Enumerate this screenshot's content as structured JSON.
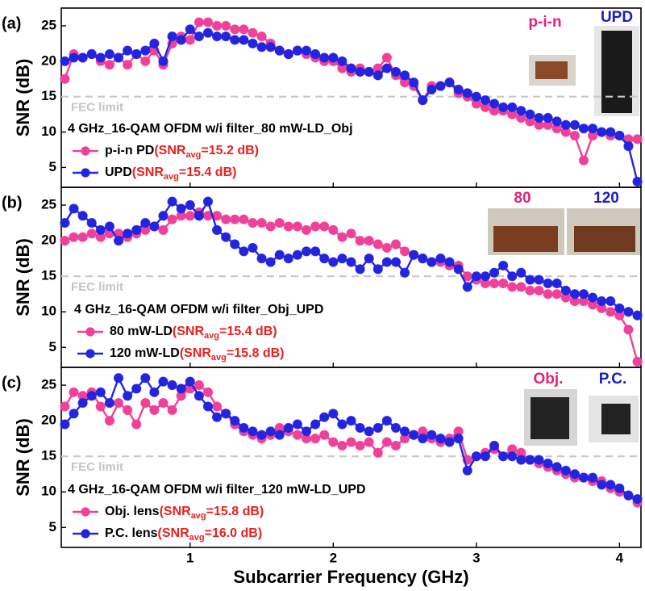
{
  "chart_data": [
    {
      "type": "line",
      "panel_label": "(a)",
      "ylabel": "SNR (dB)",
      "xlim": [
        0.1,
        4.15
      ],
      "ylim": [
        2.2,
        27.5
      ],
      "yticks": [
        5,
        10,
        15,
        20,
        25
      ],
      "fec": {
        "value": 15,
        "label": "FEC limit"
      },
      "legend_title": "4 GHz_16-QAM OFDM w/i filter_80 mW-LD_Obj",
      "photo_labels": [
        {
          "text": "p-i-n",
          "color": "#e8207a"
        },
        {
          "text": "UPD",
          "color": "#1c1cc8"
        }
      ],
      "x": [
        0.125,
        0.1875,
        0.25,
        0.3125,
        0.375,
        0.4375,
        0.5,
        0.5625,
        0.625,
        0.6875,
        0.75,
        0.8125,
        0.875,
        0.9375,
        1.0,
        1.0625,
        1.125,
        1.1875,
        1.25,
        1.3125,
        1.375,
        1.4375,
        1.5,
        1.5625,
        1.625,
        1.6875,
        1.75,
        1.8125,
        1.875,
        1.9375,
        2.0,
        2.0625,
        2.125,
        2.1875,
        2.25,
        2.3125,
        2.375,
        2.4375,
        2.5,
        2.5625,
        2.625,
        2.6875,
        2.75,
        2.8125,
        2.875,
        2.9375,
        3.0,
        3.0625,
        3.125,
        3.1875,
        3.25,
        3.3125,
        3.375,
        3.4375,
        3.5,
        3.5625,
        3.625,
        3.6875,
        3.75,
        3.8125,
        3.875,
        3.9375,
        4.0,
        4.0625,
        4.125
      ],
      "series": [
        {
          "name": "p-i-n PD",
          "color": "#f0409a",
          "snr": {
            "prefix": "(SNR",
            "sub": "avg",
            "suffix": "=15.2 dB)"
          },
          "values": [
            17.5,
            21,
            20.5,
            21,
            20,
            19.5,
            20.5,
            19.5,
            21,
            20,
            21.5,
            19.5,
            22.5,
            23.5,
            23,
            25.5,
            25.5,
            25,
            25,
            24.5,
            24.5,
            24,
            23.5,
            22.5,
            21.5,
            21,
            21.5,
            21,
            20.5,
            20,
            20,
            19,
            18.5,
            19,
            18.5,
            19,
            20.5,
            18,
            17,
            16.5,
            14.5,
            16.5,
            16.5,
            17,
            15.5,
            15,
            14,
            13.5,
            13,
            13,
            12.5,
            12,
            11.5,
            11,
            11,
            10.5,
            10,
            9.5,
            6,
            9.5,
            10,
            9.5,
            9.5,
            9,
            9
          ]
        },
        {
          "name": "UPD",
          "color": "#2424e0",
          "snr": {
            "prefix": "(SNR",
            "sub": "avg",
            "suffix": "=15.4 dB)"
          },
          "values": [
            20,
            20.5,
            20.5,
            21,
            20.5,
            21,
            20.5,
            21.5,
            21,
            21.5,
            22.5,
            20,
            23.5,
            23,
            24.5,
            23.5,
            24,
            23.5,
            23.5,
            23,
            23,
            22.5,
            22,
            22,
            21.5,
            21,
            21.5,
            21.5,
            21,
            20.5,
            20.5,
            20,
            19,
            18.5,
            18.5,
            18,
            19,
            18.5,
            18,
            17,
            14.5,
            16,
            16.5,
            17,
            16,
            15.5,
            15,
            14.5,
            14,
            13.5,
            13.5,
            13,
            12.5,
            12,
            12,
            11.5,
            11,
            11,
            10.5,
            10.5,
            10,
            10,
            9.5,
            8,
            3
          ]
        }
      ]
    },
    {
      "type": "line",
      "panel_label": "(b)",
      "ylabel": "SNR (dB)",
      "xlim": [
        0.1,
        4.15
      ],
      "ylim": [
        2.2,
        27.5
      ],
      "yticks": [
        5,
        10,
        15,
        20,
        25
      ],
      "fec": {
        "value": 15,
        "label": "FEC limit"
      },
      "legend_title": "4 GHz_16-QAM OFDM w/i filter_Obj_UPD",
      "photo_labels": [
        {
          "text": "80",
          "color": "#e8207a"
        },
        {
          "text": "120",
          "color": "#1c1cc8"
        }
      ],
      "x": [
        0.125,
        0.1875,
        0.25,
        0.3125,
        0.375,
        0.4375,
        0.5,
        0.5625,
        0.625,
        0.6875,
        0.75,
        0.8125,
        0.875,
        0.9375,
        1.0,
        1.0625,
        1.125,
        1.1875,
        1.25,
        1.3125,
        1.375,
        1.4375,
        1.5,
        1.5625,
        1.625,
        1.6875,
        1.75,
        1.8125,
        1.875,
        1.9375,
        2.0,
        2.0625,
        2.125,
        2.1875,
        2.25,
        2.3125,
        2.375,
        2.4375,
        2.5,
        2.5625,
        2.625,
        2.6875,
        2.75,
        2.8125,
        2.875,
        2.9375,
        3.0,
        3.0625,
        3.125,
        3.1875,
        3.25,
        3.3125,
        3.375,
        3.4375,
        3.5,
        3.5625,
        3.625,
        3.6875,
        3.75,
        3.8125,
        3.875,
        3.9375,
        4.0,
        4.0625,
        4.125
      ],
      "series": [
        {
          "name": "80 mW-LD",
          "color": "#f0409a",
          "snr": {
            "prefix": "(SNR",
            "sub": "avg",
            "suffix": "=15.4 dB)"
          },
          "values": [
            20,
            20.5,
            20.5,
            21,
            20.5,
            21,
            21,
            20.5,
            21,
            21.5,
            22,
            21.5,
            23,
            23.5,
            23.5,
            24,
            23.5,
            23.5,
            23,
            23,
            23,
            22.5,
            22.5,
            22,
            22.5,
            22,
            22,
            21.5,
            22,
            22,
            21.5,
            20.5,
            21,
            20,
            20,
            19.5,
            19,
            19.5,
            18.5,
            18,
            17.5,
            17,
            17,
            16.5,
            16.5,
            15,
            14.5,
            14,
            14,
            14,
            13.5,
            13.5,
            13,
            13,
            12.5,
            12.5,
            12,
            11.5,
            11.5,
            11,
            10.5,
            10,
            9.5,
            7.5,
            3
          ]
        },
        {
          "name": "120 mW-LD",
          "color": "#2424e0",
          "snr": {
            "prefix": "(SNR",
            "sub": "avg",
            "suffix": "=15.8 dB)"
          },
          "values": [
            22.5,
            24.5,
            23.5,
            22.5,
            21.5,
            22,
            20,
            21,
            21.5,
            22.5,
            22,
            23.5,
            25.5,
            24.5,
            25,
            23.5,
            25.5,
            21.5,
            20.5,
            19.5,
            18.5,
            19,
            17.5,
            17,
            18,
            17.5,
            18,
            18.5,
            18.5,
            17.5,
            17,
            17.5,
            17,
            16,
            17.5,
            16,
            17,
            17,
            15.5,
            18,
            17.5,
            17,
            17.5,
            17,
            16,
            13.5,
            15,
            15,
            15.5,
            16.5,
            15,
            15.5,
            14.5,
            14.5,
            14,
            14,
            13,
            12.5,
            12.5,
            12,
            11.5,
            11.5,
            10.5,
            10,
            9.5
          ]
        }
      ]
    },
    {
      "type": "line",
      "panel_label": "(c)",
      "ylabel": "SNR (dB)",
      "xlabel": "Subcarrier Frequency (GHz)",
      "xlim": [
        0.1,
        4.15
      ],
      "ylim": [
        2.2,
        27.5
      ],
      "xticks": [
        1,
        2,
        3,
        4
      ],
      "yticks": [
        5,
        10,
        15,
        20,
        25
      ],
      "fec": {
        "value": 15,
        "label": "FEC limit"
      },
      "legend_title": "4 GHz_16-QAM OFDM w/i filter_120 mW-LD_UPD",
      "photo_labels": [
        {
          "text": "Obj.",
          "color": "#e8207a"
        },
        {
          "text": "P.C.",
          "color": "#1c1cc8"
        }
      ],
      "x": [
        0.125,
        0.1875,
        0.25,
        0.3125,
        0.375,
        0.4375,
        0.5,
        0.5625,
        0.625,
        0.6875,
        0.75,
        0.8125,
        0.875,
        0.9375,
        1.0,
        1.0625,
        1.125,
        1.1875,
        1.25,
        1.3125,
        1.375,
        1.4375,
        1.5,
        1.5625,
        1.625,
        1.6875,
        1.75,
        1.8125,
        1.875,
        1.9375,
        2.0,
        2.0625,
        2.125,
        2.1875,
        2.25,
        2.3125,
        2.375,
        2.4375,
        2.5,
        2.5625,
        2.625,
        2.6875,
        2.75,
        2.8125,
        2.875,
        2.9375,
        3.0,
        3.0625,
        3.125,
        3.1875,
        3.25,
        3.3125,
        3.375,
        3.4375,
        3.5,
        3.5625,
        3.625,
        3.6875,
        3.75,
        3.8125,
        3.875,
        3.9375,
        4.0,
        4.0625,
        4.125
      ],
      "series": [
        {
          "name": "Obj. lens",
          "color": "#f0409a",
          "snr": {
            "prefix": "(SNR",
            "sub": "avg",
            "suffix": "=15.8 dB)"
          },
          "values": [
            22,
            24,
            23.5,
            24,
            22,
            20,
            22.5,
            21.5,
            19.5,
            22.5,
            21.5,
            22.5,
            21.5,
            23.5,
            24.5,
            25,
            24,
            22,
            21,
            19.5,
            18.5,
            18,
            17.5,
            18,
            19,
            18.5,
            18,
            17.5,
            17.5,
            18,
            17,
            16.5,
            17,
            16.5,
            17,
            15.5,
            17,
            16.5,
            17.5,
            18,
            18.5,
            17.5,
            17,
            17.5,
            18.5,
            14.5,
            15,
            15.5,
            16,
            15,
            16,
            15.5,
            14.5,
            14,
            13.5,
            13,
            12.5,
            12,
            12,
            11.5,
            11.5,
            10.5,
            10,
            9.5,
            8.5
          ]
        },
        {
          "name": "P.C. lens",
          "color": "#2424e0",
          "snr": {
            "prefix": "(SNR",
            "sub": "avg",
            "suffix": "=16.0 dB)"
          },
          "values": [
            19.5,
            21,
            22.5,
            23.5,
            24,
            22.5,
            26,
            23.5,
            24.5,
            26,
            24,
            25.5,
            25,
            24.5,
            25.5,
            23.5,
            22,
            20.5,
            21,
            20,
            19,
            18.5,
            18,
            18.5,
            18,
            19,
            19.5,
            18.5,
            19.5,
            20.5,
            21,
            19.5,
            20,
            19,
            18.5,
            19,
            20,
            19,
            18.5,
            18,
            17.5,
            18,
            17.5,
            17,
            17.5,
            13,
            15,
            15,
            16.5,
            15,
            15,
            14.5,
            14.5,
            14.5,
            14,
            13.5,
            13,
            12.5,
            12,
            12,
            11,
            11,
            10.5,
            9.5,
            9
          ]
        }
      ]
    }
  ]
}
